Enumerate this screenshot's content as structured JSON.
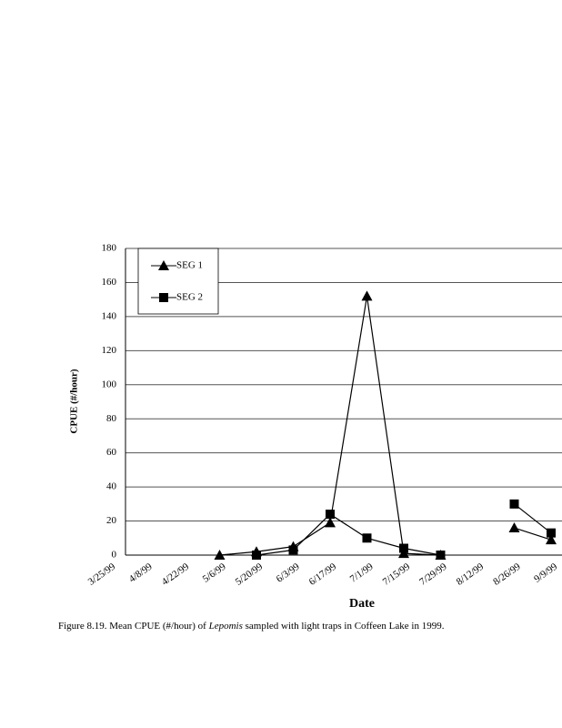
{
  "chart_data": {
    "type": "line",
    "categories": [
      "3/25/99",
      "4/8/99",
      "4/22/99",
      "5/6/99",
      "5/20/99",
      "6/3/99",
      "6/17/99",
      "7/1/99",
      "7/15/99",
      "7/29/99",
      "8/12/99",
      "8/26/99",
      "9/9/99"
    ],
    "series": [
      {
        "name": "SEG 1",
        "color": "#000000",
        "marker": "triangle",
        "values": [
          null,
          null,
          null,
          0,
          2,
          5,
          19,
          152,
          1,
          0,
          null,
          16,
          9
        ]
      },
      {
        "name": "SEG 2",
        "color": "#000000",
        "marker": "square",
        "values": [
          null,
          null,
          null,
          null,
          0,
          3,
          24,
          10,
          4,
          0,
          null,
          30,
          13
        ]
      }
    ],
    "ylim": [
      0,
      180
    ],
    "yticks": [
      0,
      20,
      40,
      60,
      80,
      100,
      120,
      140,
      160,
      180
    ],
    "grid": true,
    "legend": "top-left",
    "y_label": "CPUE (#/hour)",
    "x_label": "Date",
    "caption": [
      "Figure 8.19.  Mean CPUE (#/hour) of ",
      "Lepomis",
      " sampled with light traps in Coffeen Lake in 1999."
    ]
  }
}
